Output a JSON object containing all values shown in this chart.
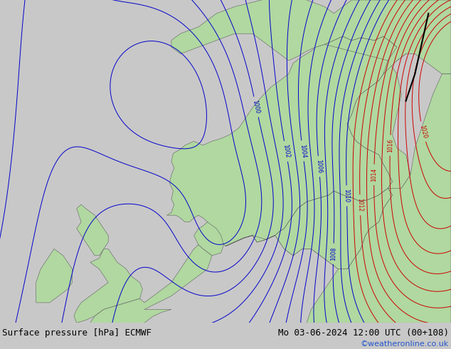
{
  "title_left": "Surface pressure [hPa] ECMWF",
  "title_right": "Mo 03-06-2024 12:00 UTC (00+108)",
  "credit": "©weatheronline.co.uk",
  "sea_color": "#c8c8c8",
  "land_color": "#b0d8a0",
  "isobar_color_blue": "#0000cc",
  "isobar_color_red": "#cc0000",
  "front_color": "#000000",
  "title_fontsize": 9,
  "credit_fontsize": 8,
  "figsize": [
    6.34,
    4.9
  ],
  "dpi": 100
}
